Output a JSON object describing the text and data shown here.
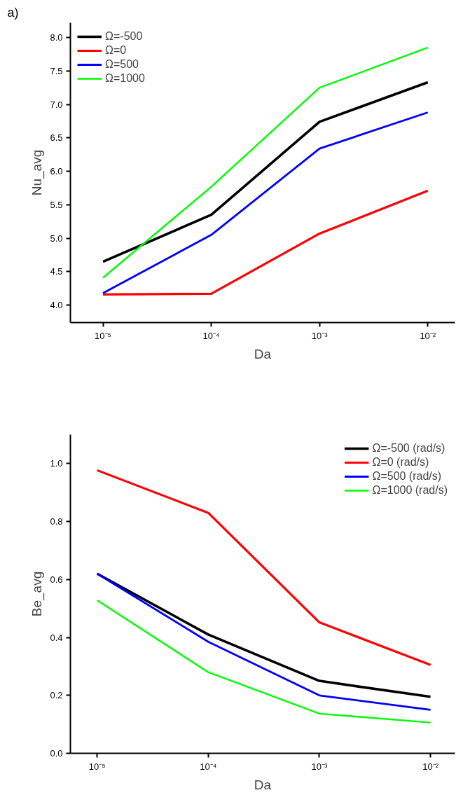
{
  "chart_data": [
    {
      "type": "line",
      "annotations": [
        "a)"
      ],
      "xlabel": "Da",
      "ylabel": "Nu_avg",
      "log": "x",
      "x": [
        1e-05,
        0.0001,
        0.001,
        0.01
      ],
      "xlim": [
        5e-06,
        0.0178
      ],
      "ylim": [
        3.74,
        8.22
      ],
      "xticks": [
        {
          "value": 1e-05,
          "label": "10⁻⁵"
        },
        {
          "value": 0.0001,
          "label": "10⁻⁴"
        },
        {
          "value": 0.001,
          "label": "10⁻³"
        },
        {
          "value": 0.01,
          "label": "10⁻²"
        }
      ],
      "yticks": [
        {
          "value": 4.0,
          "label": "4.0"
        },
        {
          "value": 4.5,
          "label": "4.5"
        },
        {
          "value": 5.0,
          "label": "5.0"
        },
        {
          "value": 5.5,
          "label": "5.5"
        },
        {
          "value": 6.0,
          "label": "6.0"
        },
        {
          "value": 6.5,
          "label": "6.5"
        },
        {
          "value": 7.0,
          "label": "7.0"
        },
        {
          "value": 7.5,
          "label": "7.5"
        },
        {
          "value": 8.0,
          "label": "8.0"
        }
      ],
      "grid": false,
      "legend": "top left",
      "marker": "none",
      "line_style": "solid",
      "series": [
        {
          "name": "Ω=-500",
          "color": "#000000",
          "values": [
            4.65,
            5.35,
            6.74,
            7.33
          ]
        },
        {
          "name": "Ω=0",
          "color": "#ff0000",
          "values": [
            4.16,
            4.17,
            5.07,
            5.71
          ]
        },
        {
          "name": "Ω=500",
          "color": "#0000ff",
          "values": [
            4.18,
            5.05,
            6.34,
            6.88
          ]
        },
        {
          "name": "Ω=1000",
          "color": "#00ff00",
          "values": [
            4.41,
            5.77,
            7.25,
            7.85
          ]
        }
      ]
    },
    {
      "type": "line",
      "xlabel": "Da",
      "ylabel": "Be_avg",
      "log": "x",
      "x": [
        1e-05,
        0.0001,
        0.001,
        0.01
      ],
      "xlim": [
        5.75e-06,
        0.0166
      ],
      "ylim": [
        0.0,
        1.1
      ],
      "xticks": [
        {
          "value": 1e-05,
          "label": "10⁻⁵"
        },
        {
          "value": 0.0001,
          "label": "10⁻⁴"
        },
        {
          "value": 0.001,
          "label": "10⁻³"
        },
        {
          "value": 0.01,
          "label": "10⁻²"
        }
      ],
      "yticks": [
        {
          "value": 0.0,
          "label": "0.0"
        },
        {
          "value": 0.2,
          "label": "0.2"
        },
        {
          "value": 0.4,
          "label": "0.4"
        },
        {
          "value": 0.6,
          "label": "0.6"
        },
        {
          "value": 0.8,
          "label": "0.8"
        },
        {
          "value": 1.0,
          "label": "1.0"
        }
      ],
      "grid": false,
      "legend": "top right",
      "marker": "none",
      "line_style": "solid",
      "series": [
        {
          "name": "Ω=-500 (rad/s)",
          "color": "#000000",
          "values": [
            0.62,
            0.41,
            0.25,
            0.195
          ]
        },
        {
          "name": "Ω=0 (rad/s)",
          "color": "#ff0000",
          "values": [
            0.977,
            0.83,
            0.452,
            0.305
          ]
        },
        {
          "name": "Ω=500 (rad/s)",
          "color": "#0000ff",
          "values": [
            0.62,
            0.385,
            0.2,
            0.15
          ]
        },
        {
          "name": "Ω=1000 (rad/s)",
          "color": "#00ff00",
          "values": [
            0.528,
            0.28,
            0.137,
            0.106
          ]
        }
      ]
    }
  ]
}
